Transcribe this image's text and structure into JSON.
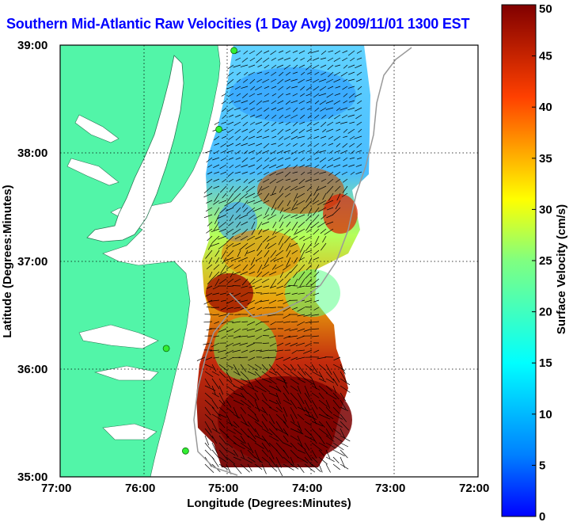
{
  "title": "Southern Mid-Atlantic Raw Velocities (1 Day Avg) 2009/11/01 1300 EST",
  "axes": {
    "xlabel": "Longitude (Degrees:Minutes)",
    "ylabel": "Latitude (Degrees:Minutes)",
    "x_ticks": [
      "77:00",
      "76:00",
      "75:00",
      "74:00",
      "73:00",
      "72:00"
    ],
    "y_ticks": [
      "39:00",
      "38:00",
      "37:00",
      "36:00",
      "35:00"
    ],
    "xlim": [
      -77,
      -72
    ],
    "ylim": [
      35,
      39
    ],
    "grid": "dotted"
  },
  "colorbar": {
    "label": "Surface Velocity (cm/s)",
    "ticks": [
      "0",
      "5",
      "10",
      "15",
      "20",
      "25",
      "30",
      "35",
      "40",
      "45",
      "50"
    ],
    "range": [
      0,
      50
    ],
    "colormap": "jet"
  },
  "colors": {
    "land": "#52f5a8",
    "water": "#ffffff",
    "title": "#0000ff",
    "station": "#33ee33"
  },
  "stations": [
    {
      "lon": -74.92,
      "lat": 38.95
    },
    {
      "lon": -75.1,
      "lat": 38.22
    },
    {
      "lon": -75.73,
      "lat": 36.19
    },
    {
      "lon": -75.5,
      "lat": 35.24
    }
  ]
}
